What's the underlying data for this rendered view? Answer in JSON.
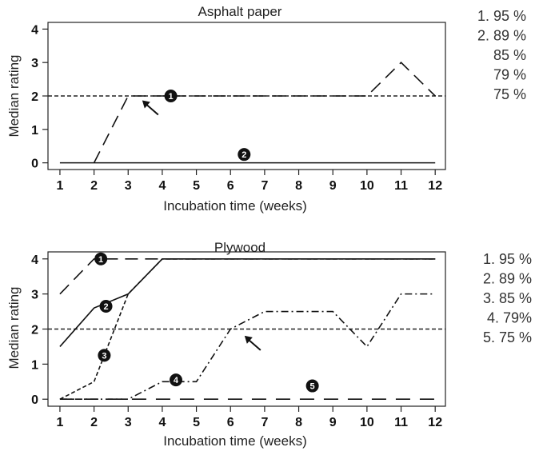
{
  "chart_data": [
    {
      "type": "line",
      "title": "Asphalt paper",
      "xlabel": "Incubation time (weeks)",
      "ylabel": "Median rating",
      "x": [
        1,
        2,
        3,
        4,
        5,
        6,
        7,
        8,
        9,
        10,
        11,
        12
      ],
      "xlim": [
        0.65,
        12.3
      ],
      "ylim": [
        -0.2,
        4.2
      ],
      "yticks": [
        0,
        1,
        2,
        3,
        4
      ],
      "threshold": 2,
      "legend": [
        "1. 95 %",
        "2. 89 %",
        "85 %",
        "79 %",
        "75 %"
      ],
      "series": [
        {
          "values": [
            null,
            0,
            2,
            2,
            2,
            2,
            2,
            2,
            2,
            2,
            3,
            2
          ],
          "dash": "long-dash",
          "marker": "1",
          "marker_at": [
            4.25,
            2
          ]
        },
        {
          "values": [
            0,
            0,
            0,
            0,
            0,
            0,
            0,
            0,
            0,
            0,
            0,
            0
          ],
          "dash": "solid",
          "marker": "2",
          "marker_at": [
            6.4,
            0.25
          ]
        }
      ],
      "arrow_at": [
        3.6,
        1.7
      ]
    },
    {
      "type": "line",
      "title": "Plywood",
      "xlabel": "Incubation time (weeks)",
      "ylabel": "Median rating",
      "x": [
        1,
        2,
        3,
        4,
        5,
        6,
        7,
        8,
        9,
        10,
        11,
        12
      ],
      "xlim": [
        0.65,
        12.3
      ],
      "ylim": [
        -0.2,
        4.2
      ],
      "yticks": [
        0,
        1,
        2,
        3,
        4
      ],
      "threshold": 2,
      "legend": [
        "1. 95 %",
        "2. 89 %",
        "3. 85 %",
        "4. 79%",
        "5. 75 %"
      ],
      "series": [
        {
          "values": [
            3,
            4,
            4,
            4,
            4,
            4,
            4,
            4,
            4,
            4,
            4,
            4
          ],
          "dash": "long-dash",
          "marker": "1",
          "marker_at": [
            2.2,
            4
          ]
        },
        {
          "values": [
            1.5,
            2.6,
            3,
            4,
            4,
            4,
            4,
            4,
            4,
            4,
            4,
            4
          ],
          "dash": "solid",
          "marker": "2",
          "marker_at": [
            2.35,
            2.65
          ]
        },
        {
          "values": [
            0,
            0.5,
            3,
            4,
            4,
            4,
            4,
            4,
            4,
            4,
            4,
            4
          ],
          "dash": "short-dash",
          "marker": "3",
          "marker_at": [
            2.3,
            1.25
          ]
        },
        {
          "values": [
            0,
            0,
            0,
            0.5,
            0.5,
            2,
            2.5,
            2.5,
            2.5,
            1.5,
            3,
            3
          ],
          "dash": "dash-dot",
          "marker": "4",
          "marker_at": [
            4.4,
            0.55
          ]
        },
        {
          "values": [
            0,
            0,
            0,
            0,
            0,
            0,
            0,
            0,
            0,
            0,
            0,
            0
          ],
          "dash": "long-dash-sparse",
          "marker": "5",
          "marker_at": [
            8.4,
            0.38
          ]
        }
      ],
      "arrow_at": [
        6.6,
        1.65
      ]
    }
  ]
}
